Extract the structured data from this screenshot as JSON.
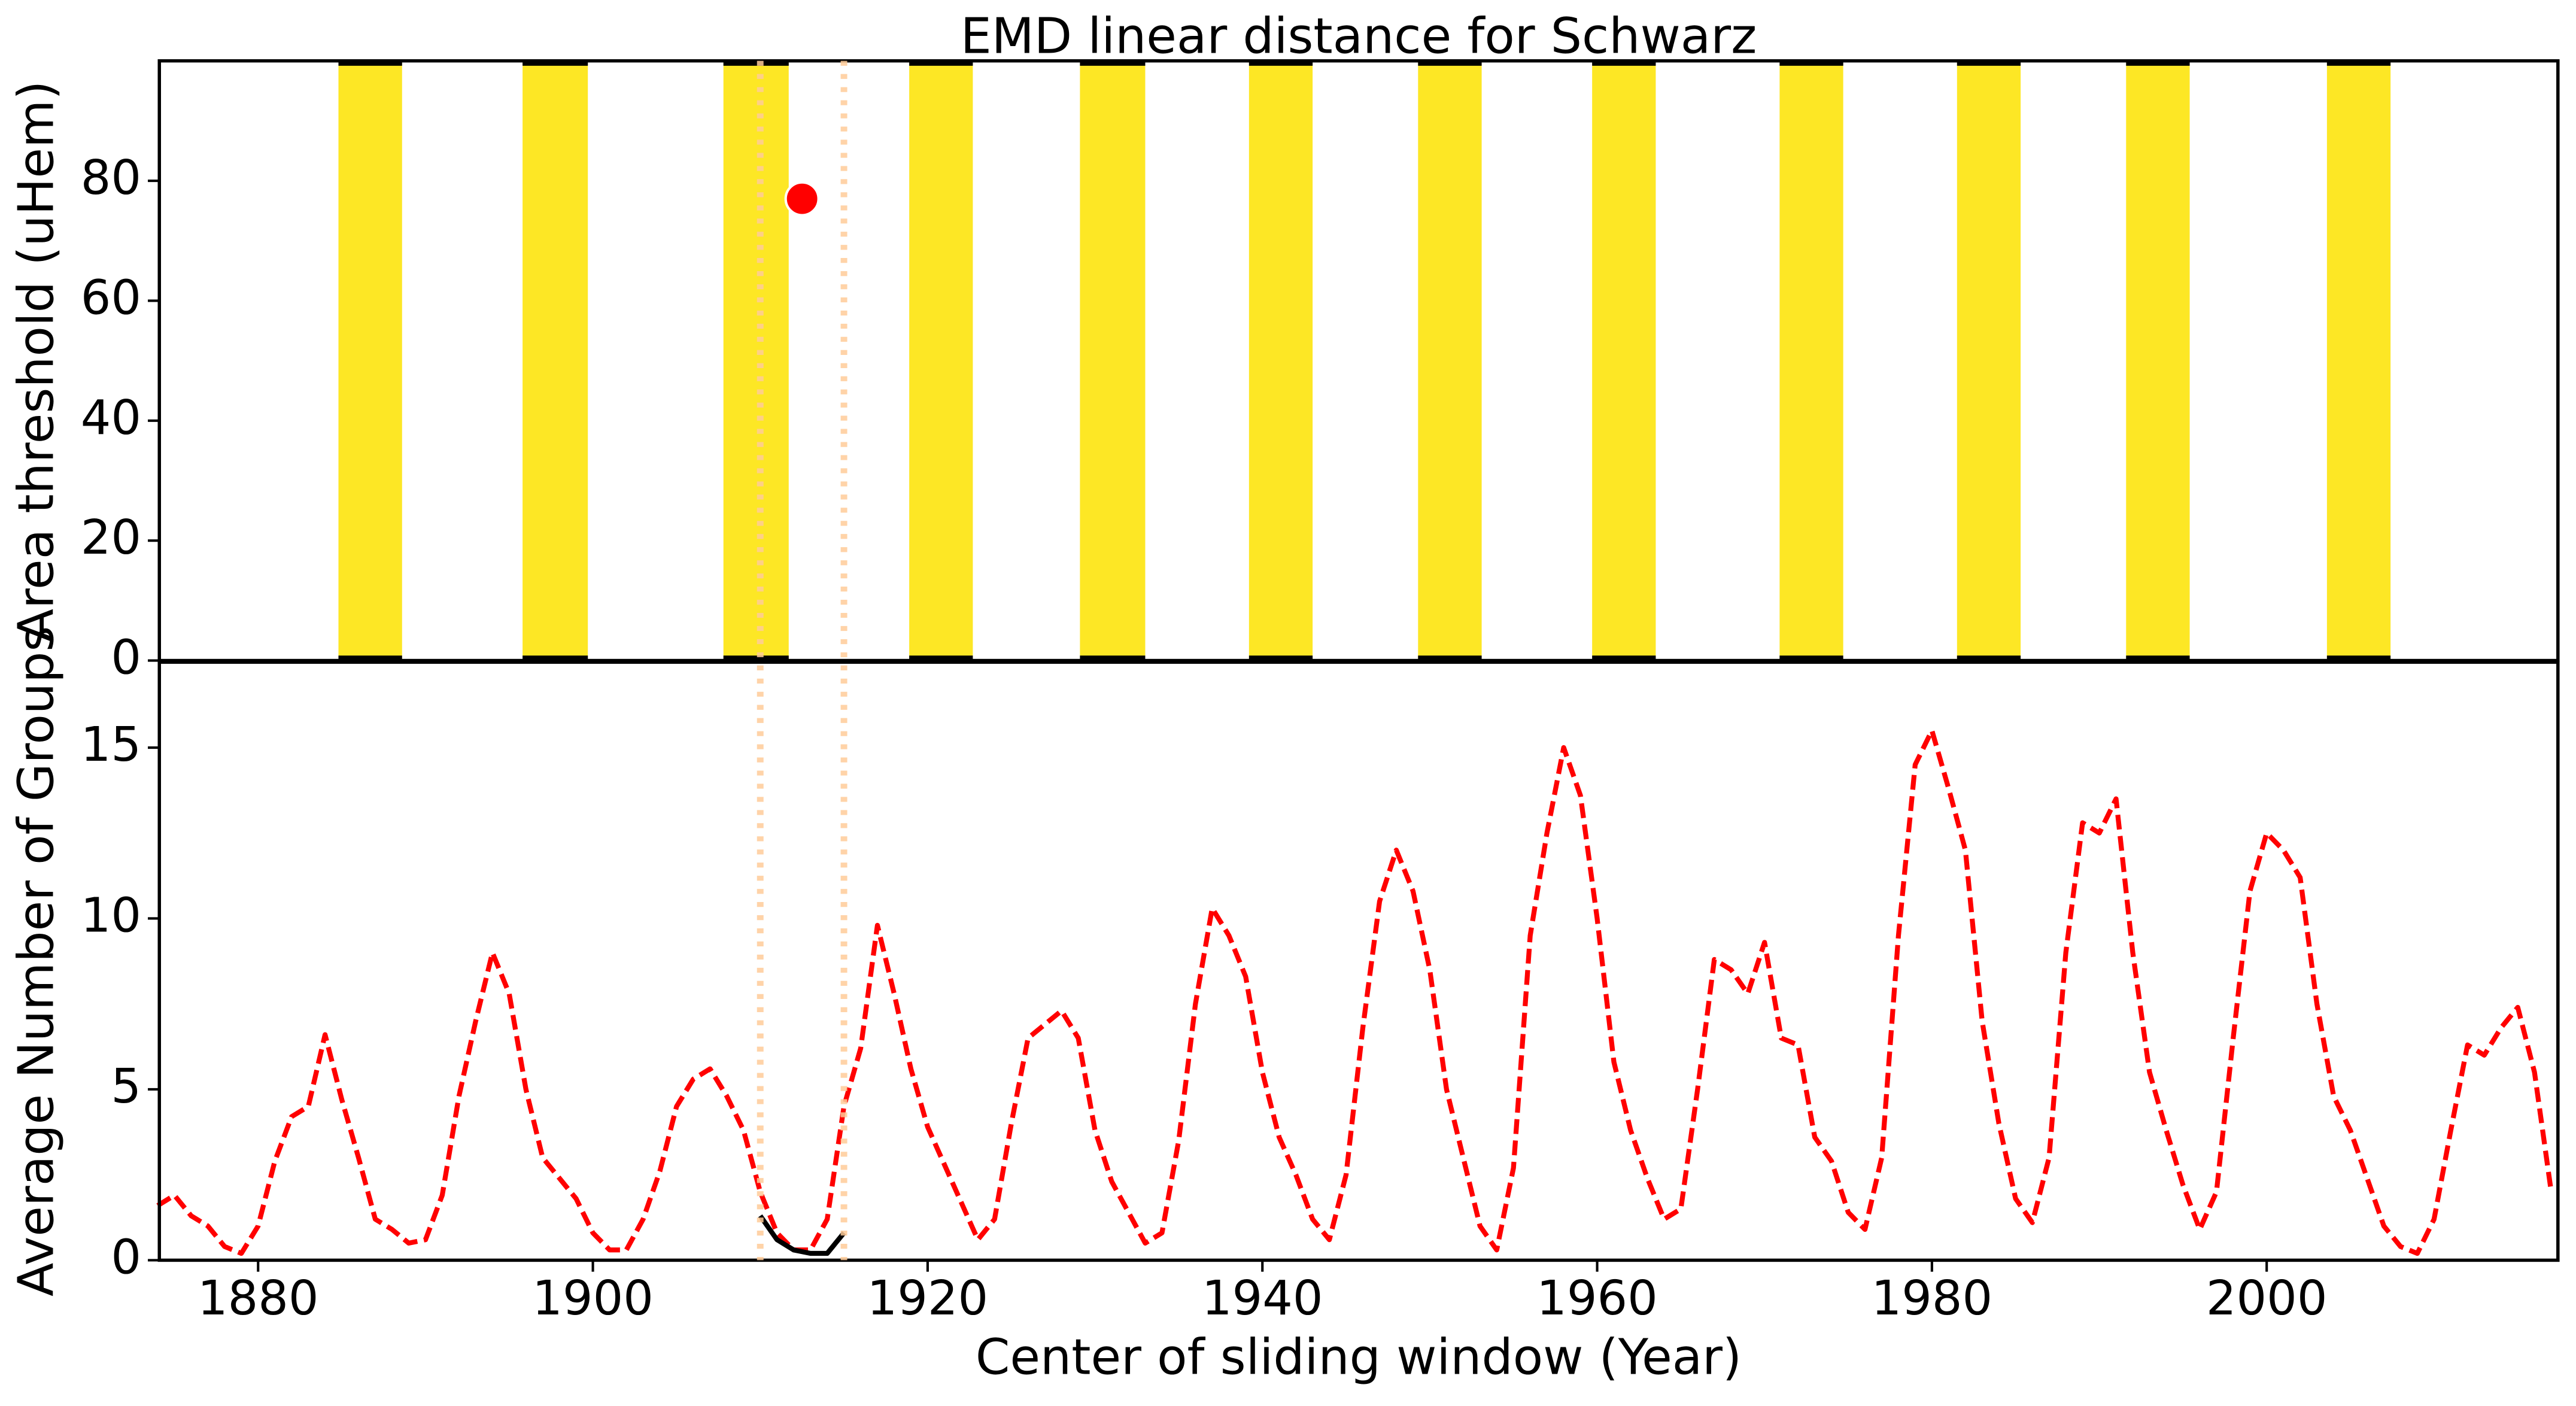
{
  "chart_data": [
    {
      "type": "interval",
      "title": "EMD linear distance for Schwarz",
      "ylabel": "Area threshold (uHem)",
      "color": "#fde725",
      "intervals": [
        [
          1884.8,
          1888.6
        ],
        [
          1895.8,
          1899.7
        ],
        [
          1907.8,
          1911.7
        ],
        [
          1918.9,
          1922.7
        ],
        [
          1929.1,
          1933.0
        ],
        [
          1939.2,
          1943.0
        ],
        [
          1949.3,
          1953.1
        ],
        [
          1959.7,
          1963.5
        ],
        [
          1970.9,
          1974.7
        ],
        [
          1981.5,
          1985.3
        ],
        [
          1991.6,
          1995.4
        ],
        [
          2003.6,
          2007.4
        ]
      ],
      "points": {
        "color": "#ff0000",
        "x": [
          1912.5
        ],
        "y": [
          77
        ]
      },
      "xlim": [
        1874.1,
        2017.4
      ],
      "xticks": [
        1880,
        1900,
        1920,
        1940,
        1960,
        1980,
        2000
      ],
      "ylim": [
        0,
        100
      ],
      "yticks": [
        0,
        20,
        40,
        60,
        80
      ]
    },
    {
      "type": "line",
      "xlabel": "Center of sliding window (Year)",
      "ylabel": "Average Number of Groups",
      "x": [
        1874,
        1875,
        1876,
        1877,
        1878,
        1879,
        1880,
        1881,
        1882,
        1883,
        1884,
        1885,
        1886,
        1887,
        1888,
        1889,
        1890,
        1891,
        1892,
        1893,
        1894,
        1895,
        1896,
        1897,
        1898,
        1899,
        1900,
        1901,
        1902,
        1903,
        1904,
        1905,
        1906,
        1907,
        1908,
        1909,
        1910,
        1911,
        1912,
        1913,
        1914,
        1915,
        1916,
        1917,
        1918,
        1919,
        1920,
        1921,
        1922,
        1923,
        1924,
        1925,
        1926,
        1927,
        1928,
        1929,
        1930,
        1931,
        1932,
        1933,
        1934,
        1935,
        1936,
        1937,
        1938,
        1939,
        1940,
        1941,
        1942,
        1943,
        1944,
        1945,
        1946,
        1947,
        1948,
        1949,
        1950,
        1951,
        1952,
        1953,
        1954,
        1955,
        1956,
        1957,
        1958,
        1959,
        1960,
        1961,
        1962,
        1963,
        1964,
        1965,
        1966,
        1967,
        1968,
        1969,
        1970,
        1971,
        1972,
        1973,
        1974,
        1975,
        1976,
        1977,
        1978,
        1979,
        1980,
        1981,
        1982,
        1983,
        1984,
        1985,
        1986,
        1987,
        1988,
        1989,
        1990,
        1991,
        1992,
        1993,
        1994,
        1995,
        1996,
        1997,
        1998,
        1999,
        2000,
        2001,
        2002,
        2003,
        2004,
        2005,
        2006,
        2007,
        2008,
        2009,
        2010,
        2011,
        2012,
        2013,
        2014,
        2015,
        2016,
        2017
      ],
      "series": [
        {
          "color": "#ff0000",
          "dashed": true,
          "values": [
            1.6,
            1.9,
            1.3,
            1.0,
            0.4,
            0.2,
            1.0,
            2.9,
            4.2,
            4.5,
            6.6,
            4.7,
            3.0,
            1.2,
            0.9,
            0.5,
            0.6,
            1.9,
            4.8,
            7.0,
            9.0,
            7.8,
            5.0,
            3.0,
            2.4,
            1.8,
            0.8,
            0.3,
            0.3,
            1.2,
            2.6,
            4.5,
            5.3,
            5.6,
            4.8,
            3.8,
            2.0,
            0.8,
            0.3,
            0.3,
            1.2,
            4.5,
            6.2,
            9.8,
            7.8,
            5.6,
            3.9,
            2.8,
            1.7,
            0.6,
            1.2,
            4.0,
            6.5,
            6.9,
            7.3,
            6.5,
            3.8,
            2.3,
            1.4,
            0.5,
            0.8,
            3.5,
            7.5,
            10.3,
            9.5,
            8.3,
            5.5,
            3.6,
            2.5,
            1.2,
            0.6,
            2.5,
            6.8,
            10.5,
            12.0,
            10.8,
            8.5,
            5.0,
            3.0,
            1.0,
            0.3,
            2.7,
            9.5,
            12.5,
            15.0,
            13.6,
            10.0,
            5.8,
            3.8,
            2.4,
            1.2,
            1.5,
            5.0,
            8.8,
            8.5,
            7.8,
            9.3,
            6.5,
            6.3,
            3.6,
            2.9,
            1.4,
            0.9,
            3.0,
            9.5,
            14.5,
            15.5,
            13.8,
            12.0,
            7.0,
            4.0,
            1.8,
            1.1,
            3.0,
            9.0,
            12.8,
            12.5,
            13.5,
            9.0,
            5.5,
            3.8,
            2.2,
            0.9,
            2.0,
            6.5,
            10.8,
            12.5,
            12.0,
            11.2,
            7.5,
            4.8,
            3.8,
            2.4,
            1.0,
            0.4,
            0.2,
            1.2,
            3.8,
            6.3,
            6.0,
            6.8,
            7.4,
            5.5,
            2.0
          ]
        },
        {
          "color": "#000000",
          "dashed": false,
          "x": [
            1910,
            1911,
            1912,
            1913,
            1914,
            1915
          ],
          "values": [
            1.3,
            0.6,
            0.3,
            0.2,
            0.2,
            0.8
          ]
        }
      ],
      "vlines": {
        "color": "#ffcc99",
        "x": [
          1910,
          1915
        ]
      },
      "xlim": [
        1874.1,
        2017.4
      ],
      "xticks": [
        1880,
        1900,
        1920,
        1940,
        1960,
        1980,
        2000
      ],
      "ylim": [
        0,
        17.5
      ],
      "yticks": [
        0,
        5,
        10,
        15
      ]
    }
  ]
}
